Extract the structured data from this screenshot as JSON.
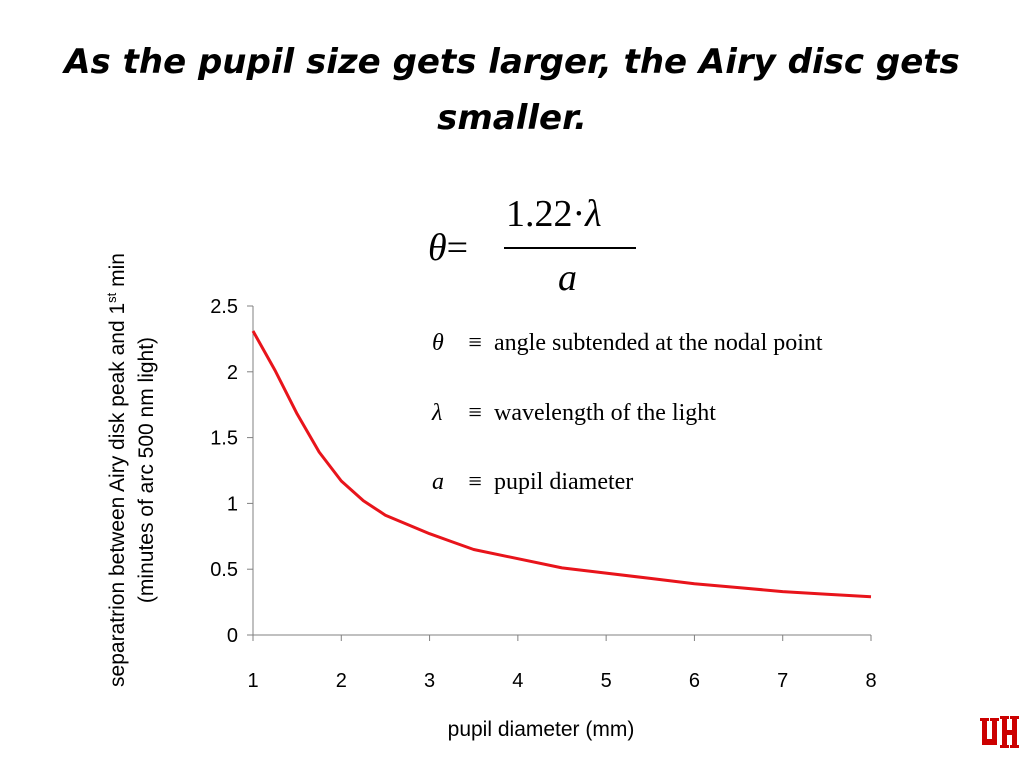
{
  "slide": {
    "title": "As the pupil size gets larger, the Airy disc gets smaller."
  },
  "formula": {
    "lhs_symbol": "θ",
    "equals": "=",
    "numerator_const": "1.22·",
    "numerator_symbol": "λ",
    "denominator": "a"
  },
  "definitions": [
    {
      "symbol": "θ",
      "equiv": "≡",
      "text": "angle subtended at the nodal point"
    },
    {
      "symbol": "λ",
      "equiv": "≡",
      "text": "wavelength of the light"
    },
    {
      "symbol": "a",
      "equiv": "≡",
      "text": "pupil diameter"
    }
  ],
  "logo": {
    "label": "UH"
  },
  "colors": {
    "curve": "#e8141b",
    "logo": "#cc0000"
  },
  "chart_data": {
    "type": "line",
    "title": "",
    "xlabel": "pupil diameter (mm)",
    "ylabel_line1_main": "separatrion between Airy disk peak and 1",
    "ylabel_line1_sup": "st",
    "ylabel_line1_end": " min",
    "ylabel_line2": "(minutes of arc 500 nm light)",
    "xlim": [
      1,
      8
    ],
    "ylim": [
      0,
      2.5
    ],
    "x_ticks": [
      "1",
      "2",
      "3",
      "4",
      "5",
      "6",
      "7",
      "8"
    ],
    "y_ticks": [
      "0",
      "0.5",
      "1",
      "1.5",
      "2",
      "2.5"
    ],
    "grid": false,
    "series": [
      {
        "x": [
          1,
          1.25,
          1.5,
          1.75,
          2,
          2.25,
          2.5,
          2.75,
          3,
          3.25,
          3.5,
          4,
          4.5,
          5,
          5.5,
          6,
          6.5,
          7,
          7.5,
          8
        ],
        "y": [
          2.31,
          2.01,
          1.68,
          1.39,
          1.17,
          1.02,
          0.91,
          0.84,
          0.77,
          0.71,
          0.65,
          0.58,
          0.51,
          0.47,
          0.43,
          0.39,
          0.36,
          0.33,
          0.31,
          0.29
        ]
      }
    ]
  }
}
